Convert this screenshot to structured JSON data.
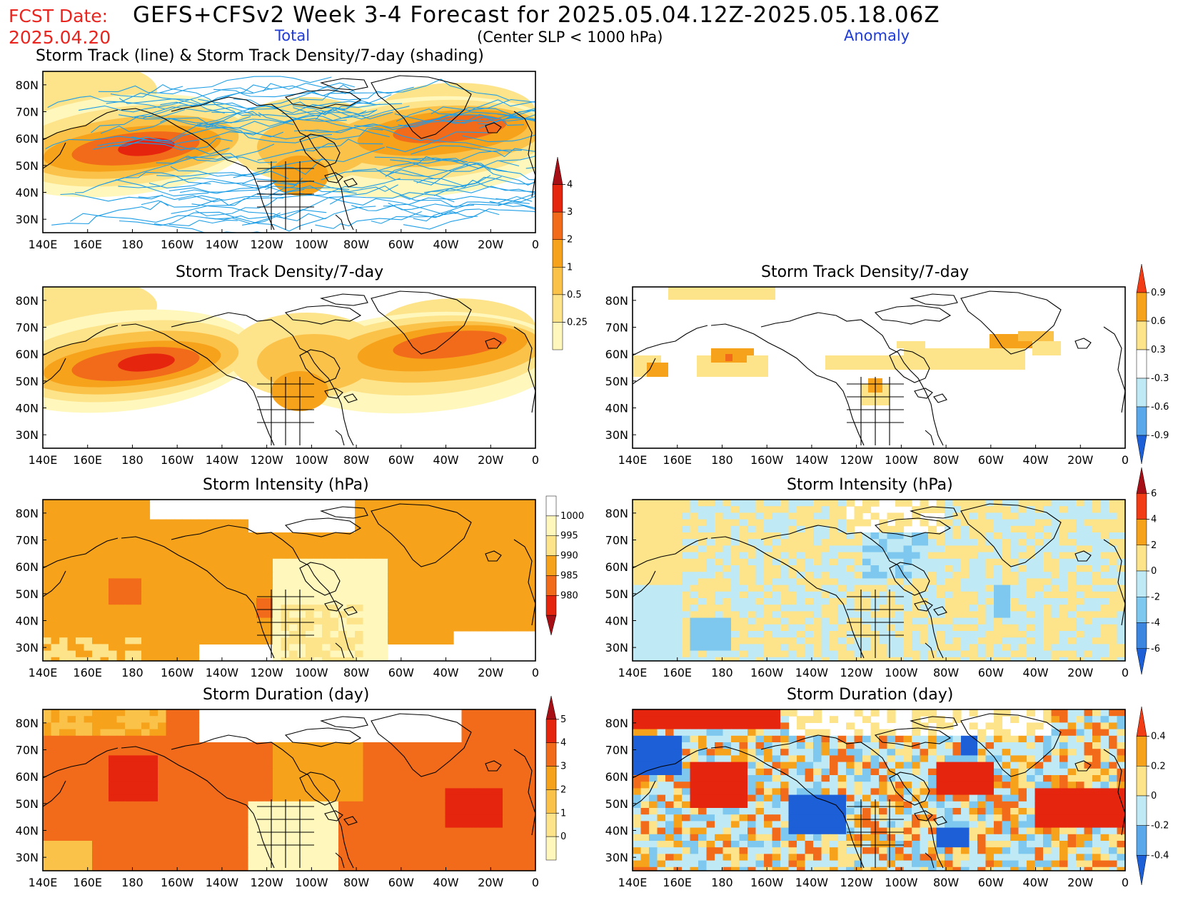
{
  "header": {
    "fcst_label": "FCST Date:",
    "fcst_date": "2025.04.20",
    "title": "GEFS+CFSv2 Week 3-4 Forecast for 2025.05.04.12Z-2025.05.18.06Z",
    "total_label": "Total",
    "center_label": "(Center SLP < 1000 hPa)",
    "anomaly_label": "Anomaly"
  },
  "axes": {
    "lat_labels": [
      "80N",
      "70N",
      "60N",
      "50N",
      "40N",
      "30N"
    ],
    "lon_labels": [
      "140E",
      "160E",
      "180",
      "160W",
      "140W",
      "120W",
      "100W",
      "80W",
      "60W",
      "40W",
      "20W",
      "0"
    ]
  },
  "panels": {
    "track": {
      "title": "Storm Track (line) & Storm Track Density/7-day (shading)",
      "line_color": "#1e9ee6"
    },
    "density_total": {
      "title": "Storm Track Density/7-day"
    },
    "density_anom": {
      "title": "Storm Track Density/7-day"
    },
    "intensity_total": {
      "title": "Storm Intensity (hPa)"
    },
    "intensity_anom": {
      "title": "Storm Intensity (hPa)"
    },
    "duration_total": {
      "title": "Storm Duration (day)"
    },
    "duration_anom": {
      "title": "Storm Duration (day)"
    }
  },
  "colorbars": {
    "density_total": {
      "labels": [
        "4",
        "3",
        "2",
        "1",
        "0.5",
        "0.25"
      ],
      "colors": [
        "#a50f15",
        "#e6250f",
        "#f26b1a",
        "#f7a21b",
        "#fbc24a",
        "#fde38a",
        "#fff7bc"
      ]
    },
    "density_anom": {
      "labels": [
        "0.9",
        "0.6",
        "0.3",
        "-0.3",
        "-0.6",
        "-0.9"
      ],
      "colors": [
        "#f23c16",
        "#f7a21b",
        "#fde38a",
        "#ffffff",
        "#bfeaf5",
        "#5aa8ea",
        "#1c5fd6"
      ]
    },
    "intensity_total": {
      "labels": [
        "1000",
        "995",
        "990",
        "985",
        "980"
      ],
      "colors": [
        "#ffffff",
        "#fff7bc",
        "#fde38a",
        "#f7a21b",
        "#f26b1a",
        "#e6250f",
        "#a50f15"
      ]
    },
    "intensity_anom": {
      "labels": [
        "6",
        "4",
        "2",
        "0",
        "-2",
        "-4",
        "-6"
      ],
      "colors": [
        "#a50f15",
        "#f23c16",
        "#f7a21b",
        "#fde38a",
        "#bfeaf5",
        "#7ec8ef",
        "#3d86e0",
        "#1c5fd6"
      ]
    },
    "duration_total": {
      "labels": [
        "5",
        "4",
        "3",
        "2",
        "1",
        "0"
      ],
      "colors": [
        "#a50f15",
        "#e6250f",
        "#f26b1a",
        "#f7a21b",
        "#fbc24a",
        "#fde38a",
        "#fff7bc"
      ]
    },
    "duration_anom": {
      "labels": [
        "0.4",
        "0.2",
        "0",
        "-0.2",
        "-0.4"
      ],
      "colors": [
        "#f23c16",
        "#f7a21b",
        "#fde38a",
        "#bfeaf5",
        "#5aa8ea",
        "#1c5fd6"
      ]
    }
  }
}
